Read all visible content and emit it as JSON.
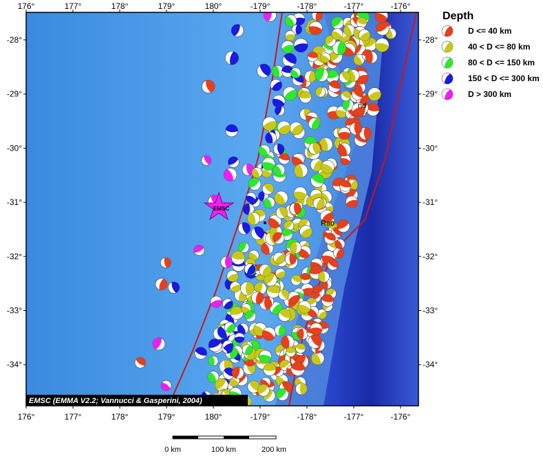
{
  "map": {
    "top_ticks": [
      "176°",
      "177°",
      "178°",
      "179°",
      "180°",
      "-179°",
      "-178°",
      "-177°",
      "-176°"
    ],
    "bottom_ticks": [
      "176°",
      "177°",
      "178°",
      "179°",
      "180°",
      "-179°",
      "-178°",
      "-177°",
      "-176°"
    ],
    "left_ticks": [
      "-28°",
      "-29°",
      "-30°",
      "-31°",
      "-32°",
      "-33°",
      "-34°"
    ],
    "right_ticks": [
      "-28°",
      "-29°",
      "-30°",
      "-31°",
      "-32°",
      "-33°",
      "-34°"
    ],
    "star_label": "EMSC",
    "place_labels": [
      "nd",
      "Rao"
    ],
    "credit": "EMSC (EMMA V2.2; Vannucci & Gasperini, 2004)"
  },
  "legend": {
    "title": "Depth",
    "items": [
      {
        "label": "D <= 40 km",
        "color": "#e8401c"
      },
      {
        "label": "40 < D <= 80 km",
        "color": "#c8c81a"
      },
      {
        "label": "80 < D <= 150 km",
        "color": "#2ee82e"
      },
      {
        "label": "150 < D <= 300 km",
        "color": "#1a1ae0"
      },
      {
        "label": "D > 300 km",
        "color": "#f01ef0"
      }
    ]
  },
  "scale": {
    "labels": [
      "0 km",
      "100 km",
      "200 km"
    ]
  }
}
